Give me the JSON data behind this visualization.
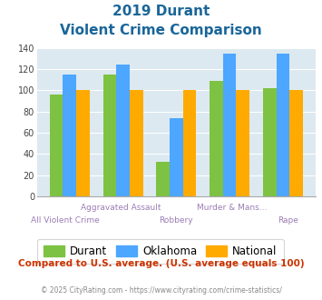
{
  "title_line1": "2019 Durant",
  "title_line2": "Violent Crime Comparison",
  "categories": [
    "All Violent Crime",
    "Aggravated Assault",
    "Robbery",
    "Murder & Mans...",
    "Rape"
  ],
  "top_labels": [
    "",
    "Aggravated Assault",
    "",
    "Murder & Mans...",
    ""
  ],
  "bottom_labels": [
    "All Violent Crime",
    "",
    "Robbery",
    "",
    "Rape"
  ],
  "durant": [
    96,
    115,
    33,
    109,
    102
  ],
  "oklahoma": [
    115,
    124,
    74,
    135,
    135
  ],
  "national": [
    100,
    100,
    100,
    100,
    100
  ],
  "durant_color": "#7dc242",
  "oklahoma_color": "#4da6ff",
  "national_color": "#ffaa00",
  "ylim": [
    0,
    140
  ],
  "yticks": [
    0,
    20,
    40,
    60,
    80,
    100,
    120,
    140
  ],
  "plot_bg": "#dce9f0",
  "title_color": "#1a6699",
  "xlabel_color": "#9b7db5",
  "footer_text": "Compared to U.S. average. (U.S. average equals 100)",
  "footer_color": "#cc3300",
  "credit_text": "© 2025 CityRating.com - https://www.cityrating.com/crime-statistics/",
  "credit_color": "#888888",
  "legend_labels": [
    "Durant",
    "Oklahoma",
    "National"
  ]
}
